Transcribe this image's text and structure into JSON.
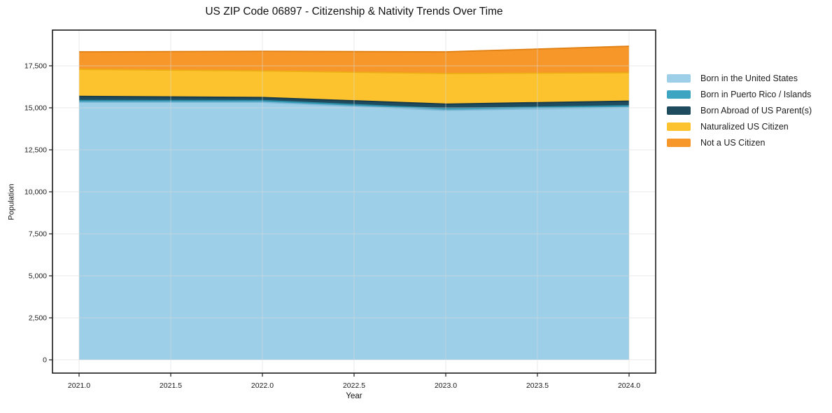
{
  "chart_data": {
    "type": "area",
    "stacked": true,
    "title": "US ZIP Code 06897 - Citizenship & Nativity Trends Over Time",
    "xlabel": "Year",
    "ylabel": "Population",
    "x": [
      2021,
      2022,
      2023,
      2024
    ],
    "series": [
      {
        "name": "Born in the United States",
        "values": [
          15330,
          15330,
          14850,
          15020
        ],
        "color": "#9DCFE8",
        "edge": "#7FB8D6"
      },
      {
        "name": "Born in Puerto Rico / Islands",
        "values": [
          100,
          100,
          100,
          105
        ],
        "color": "#3DA5C2",
        "edge": "#2E8FA8"
      },
      {
        "name": "Born Abroad of US Parent(s)",
        "values": [
          250,
          185,
          270,
          270
        ],
        "color": "#1E4B5E",
        "edge": "#16394A"
      },
      {
        "name": "Naturalized US Citizen",
        "values": [
          1610,
          1580,
          1820,
          1690
        ],
        "color": "#FDC32E",
        "edge": "#EDAD14"
      },
      {
        "name": "Not a US Citizen",
        "values": [
          1040,
          1170,
          1290,
          1580
        ],
        "color": "#F79729",
        "edge": "#E07F12"
      }
    ],
    "xlim": [
      2020.855,
      2024.145
    ],
    "ylim": [
      -790,
      19625
    ],
    "xticks": {
      "values": [
        2021.0,
        2021.5,
        2022.0,
        2022.5,
        2023.0,
        2023.5,
        2024.0
      ],
      "labels": [
        "2021.0",
        "2021.5",
        "2022.0",
        "2022.5",
        "2023.0",
        "2023.5",
        "2024.0"
      ]
    },
    "yticks": {
      "values": [
        0,
        2500,
        5000,
        7500,
        10000,
        12500,
        15000,
        17500
      ],
      "labels": [
        "0",
        "2,500",
        "5,000",
        "7,500",
        "10,000",
        "12,500",
        "15,000",
        "17,500"
      ]
    },
    "grid": true,
    "legend_position": "right",
    "colors": {
      "spine": "#1a1a1a",
      "grid": "#d9d9d9",
      "tick_text": "#1a1a1a",
      "background": "#ffffff"
    }
  }
}
